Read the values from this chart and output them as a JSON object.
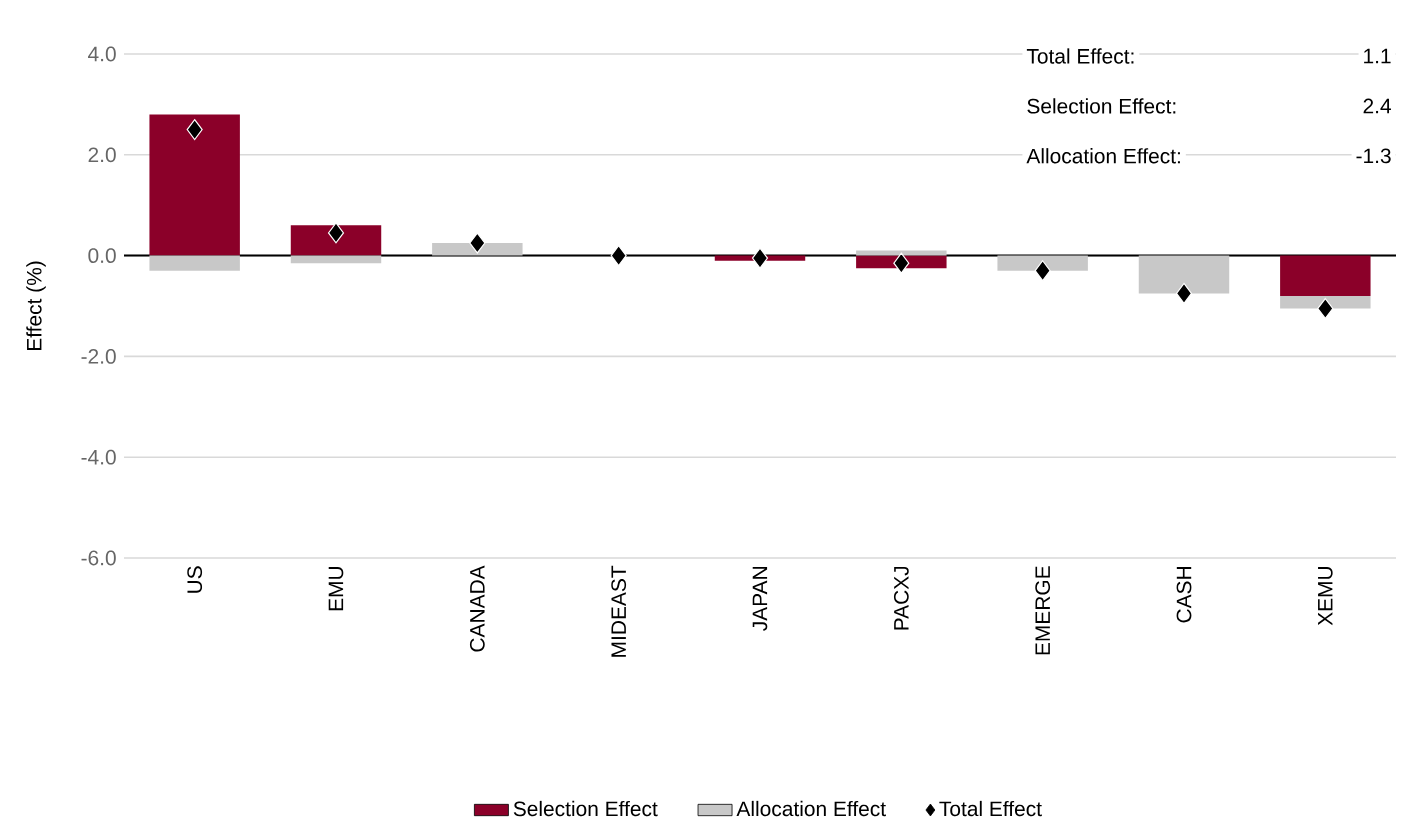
{
  "chart_data": {
    "type": "bar",
    "stacked": true,
    "ylabel": "Effect (%)",
    "categories": [
      "US",
      "EMU",
      "CANADA",
      "MIDEAST",
      "JAPAN",
      "PACXJ",
      "EMERGE",
      "CASH",
      "XEMU"
    ],
    "series": [
      {
        "name": "Selection Effect",
        "color": "#8b0029",
        "values": [
          2.8,
          0.6,
          0,
          0,
          -0.1,
          -0.25,
          0,
          0,
          -0.8
        ]
      },
      {
        "name": "Allocation Effect",
        "color": "#c8c8c8",
        "values": [
          -0.3,
          -0.15,
          0.25,
          0,
          0,
          0.1,
          -0.3,
          -0.75,
          -0.25
        ]
      },
      {
        "name": "Total Effect",
        "type": "scatter",
        "marker": "diamond",
        "color": "#000000",
        "values": [
          2.5,
          0.45,
          0.25,
          0,
          -0.05,
          -0.15,
          -0.3,
          -0.75,
          -1.05
        ]
      }
    ],
    "ylim": [
      -6,
      4
    ],
    "yticks": [
      {
        "value": -6,
        "label": "-6.0"
      },
      {
        "value": -4,
        "label": "-4.0"
      },
      {
        "value": -2,
        "label": "-2.0"
      },
      {
        "value": 0,
        "label": "0.0"
      },
      {
        "value": 2,
        "label": "2.0"
      },
      {
        "value": 4,
        "label": "4.0"
      }
    ],
    "grid": "y",
    "legend": "bottom",
    "annotations": [
      "Total Effect:",
      "1.1",
      "Selection Effect:",
      "2.4",
      "Allocation Effect:",
      "-1.3"
    ]
  }
}
